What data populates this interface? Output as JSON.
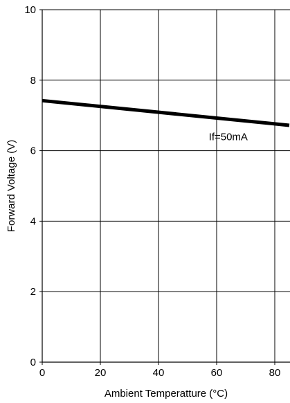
{
  "chart_data": {
    "type": "line",
    "title": "",
    "xlabel": "Ambient Temperatture (°C)",
    "ylabel": "Forward Voltage (V)",
    "xlim": [
      0,
      85
    ],
    "ylim": [
      0,
      10
    ],
    "xticks": [
      0,
      20,
      40,
      60,
      80
    ],
    "yticks": [
      0,
      2,
      4,
      6,
      8,
      10
    ],
    "grid": true,
    "series": [
      {
        "x": [
          0,
          85
        ],
        "y": [
          7.42,
          6.72
        ]
      }
    ],
    "annotations": [
      {
        "text": "If=50mA",
        "x": 64,
        "y": 6.3
      }
    ],
    "colors": {
      "line": "#000000",
      "grid": "#000000",
      "background": "#ffffff"
    }
  }
}
